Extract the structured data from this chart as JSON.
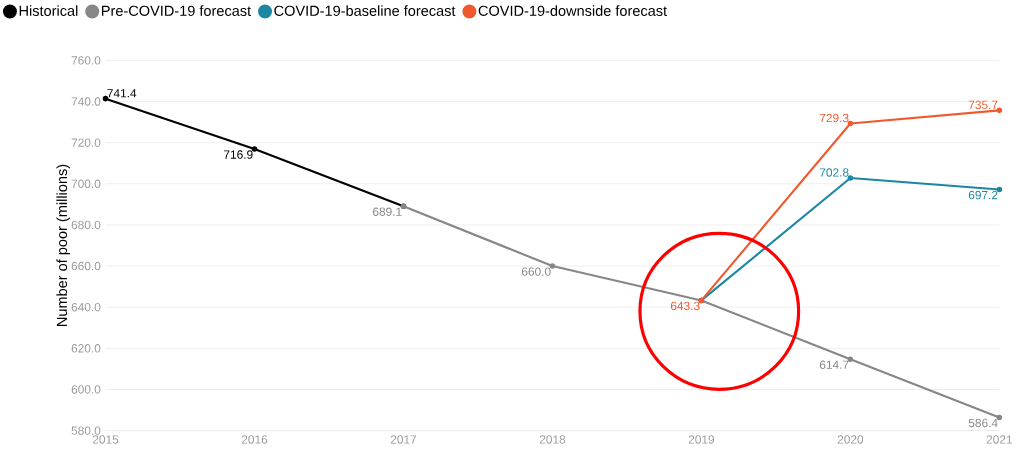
{
  "chart_data": {
    "type": "line",
    "ylabel": "Number of poor (millions)",
    "xlim": [
      2015,
      2021
    ],
    "xticks": [
      2015,
      2016,
      2017,
      2018,
      2019,
      2020,
      2021
    ],
    "ylim": [
      580,
      760
    ],
    "yticks": [
      {
        "value": 580,
        "label": "580.0"
      },
      {
        "value": 600,
        "label": "600.0"
      },
      {
        "value": 620,
        "label": "620.0"
      },
      {
        "value": 640,
        "label": "640.0"
      },
      {
        "value": 660,
        "label": "660.0"
      },
      {
        "value": 680,
        "label": "680.0"
      },
      {
        "value": 700,
        "label": "700.0"
      },
      {
        "value": 720,
        "label": "720.0"
      },
      {
        "value": 740,
        "label": "740.0"
      },
      {
        "value": 760,
        "label": "760.0"
      }
    ],
    "grid": "y",
    "legend": "top left",
    "marker": "circle",
    "line_style": "solid",
    "series": [
      {
        "name": "Historical",
        "color": "#000000",
        "x": [
          2015,
          2016,
          2017
        ],
        "values": [
          741.4,
          716.9,
          689.1
        ],
        "value_labels": [
          "741.4",
          "716.9",
          null
        ]
      },
      {
        "name": "Pre-COVID-19 forecast",
        "color": "#878787",
        "x": [
          2017,
          2018,
          2019,
          2020,
          2021
        ],
        "values": [
          689.1,
          660.0,
          643.3,
          614.7,
          586.4
        ],
        "value_labels": [
          "689.1",
          "660.0",
          null,
          "614.7",
          "586.4"
        ]
      },
      {
        "name": "COVID-19-baseline forecast",
        "color": "#1b87a1",
        "x": [
          2019,
          2020,
          2021
        ],
        "values": [
          643.3,
          702.8,
          697.2
        ],
        "value_labels": [
          null,
          "702.8",
          "697.2"
        ]
      },
      {
        "name": "COVID-19-downside forecast",
        "color": "#ee5a2e",
        "x": [
          2019,
          2020,
          2021
        ],
        "values": [
          643.3,
          729.3,
          735.7
        ],
        "value_labels": [
          "643.3",
          "729.3",
          "735.7"
        ]
      }
    ]
  }
}
